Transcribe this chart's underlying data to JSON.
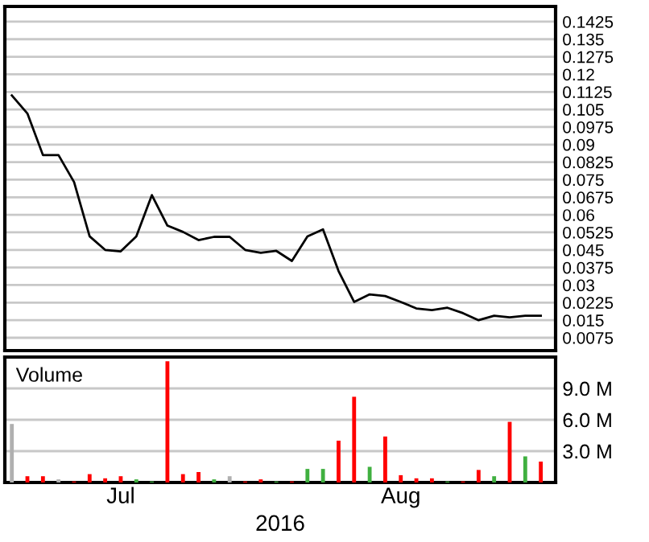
{
  "chart_data": [
    {
      "type": "line",
      "categories": [
        null,
        null,
        null,
        null,
        null,
        null,
        null,
        null,
        null,
        null,
        null,
        null,
        null,
        null,
        null,
        null,
        null,
        null,
        null,
        null,
        null,
        null,
        null,
        null,
        null,
        null,
        null,
        null,
        null,
        null,
        null,
        null,
        null,
        null,
        null
      ],
      "series": [
        {
          "color": "#000000",
          "values": [
            0.111,
            0.1033,
            0.0855,
            0.0855,
            0.074,
            0.0508,
            0.045,
            0.0444,
            0.0508,
            0.0684,
            0.0554,
            0.0527,
            0.0492,
            0.0506,
            0.0506,
            0.045,
            0.0438,
            0.0446,
            0.0403,
            0.0508,
            0.0538,
            0.036,
            0.0228,
            0.026,
            0.0253,
            0.0228,
            0.02,
            0.0193,
            0.0203,
            0.018,
            0.015,
            0.0169,
            0.0162,
            0.0169,
            0.0169
          ]
        }
      ],
      "ylim": [
        0.002,
        0.149
      ],
      "yticks": [
        0.0075,
        0.015,
        0.0225,
        0.03,
        0.0375,
        0.045,
        0.0525,
        0.06,
        0.0675,
        0.075,
        0.0825,
        0.09,
        0.0975,
        0.105,
        0.1125,
        0.12,
        0.1275,
        0.135,
        0.1425
      ],
      "grid": "y",
      "tick_labels": "y",
      "marker": "none",
      "line_style": "solid",
      "legend": false
    },
    {
      "type": "bar",
      "title": "Volume",
      "xlabel": "2016",
      "categories": [
        null,
        null,
        null,
        null,
        null,
        null,
        null,
        "Jul",
        null,
        null,
        null,
        null,
        null,
        null,
        null,
        null,
        null,
        null,
        null,
        null,
        null,
        null,
        null,
        null,
        null,
        "Aug",
        null,
        null,
        null,
        null,
        null,
        null,
        null,
        null,
        null
      ],
      "values": [
        5.6,
        0.6,
        0.6,
        0.3,
        0.1,
        0.8,
        0.4,
        0.6,
        0.3,
        0.1,
        11.6,
        0.8,
        1.0,
        0.3,
        0.6,
        0.1,
        0.3,
        0.1,
        0.1,
        1.3,
        1.3,
        4.0,
        8.2,
        1.5,
        4.4,
        0.7,
        0.4,
        0.4,
        0.1,
        0.1,
        1.2,
        0.6,
        5.8,
        2.5,
        2.0
      ],
      "colors": [
        "#b0b0b0",
        "#ff0000",
        "#ff0000",
        "#b0b0b0",
        "#ff0000",
        "#ff0000",
        "#ff0000",
        "#ff0000",
        "#40b040",
        "#40b040",
        "#ff0000",
        "#ff0000",
        "#ff0000",
        "#40b040",
        "#b0b0b0",
        "#ff0000",
        "#ff0000",
        "#40b040",
        "#ff0000",
        "#40b040",
        "#40b040",
        "#ff0000",
        "#ff0000",
        "#40b040",
        "#ff0000",
        "#ff0000",
        "#ff0000",
        "#ff0000",
        "#40b040",
        "#ff0000",
        "#ff0000",
        "#40b040",
        "#ff0000",
        "#40b040",
        "#ff0000"
      ],
      "ylim": [
        0,
        12
      ],
      "yticks": [
        {
          "value": 3,
          "label": "3.0 M"
        },
        {
          "value": 6,
          "label": "6.0 M"
        },
        {
          "value": 9,
          "label": "9.0 M"
        }
      ],
      "grid": "y",
      "legend": false
    }
  ]
}
